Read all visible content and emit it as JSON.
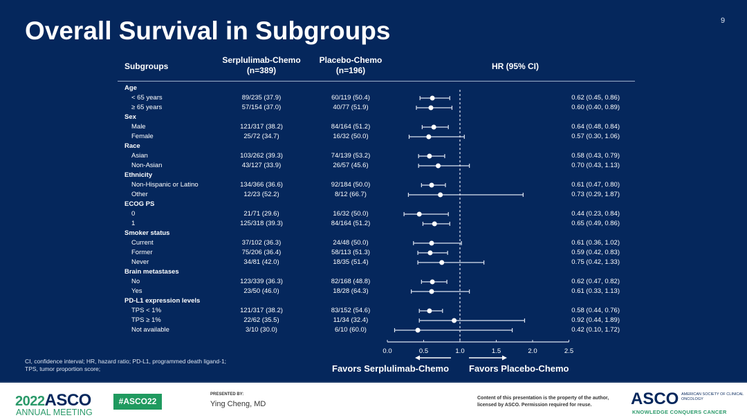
{
  "slide": {
    "title": "Overall Survival in Subgroups",
    "page_number": "9",
    "headers": {
      "subgroups": "Subgroups",
      "arm1": "Serplulimab-Chemo",
      "arm1_n": "(n=389)",
      "arm2": "Placebo-Chemo",
      "arm2_n": "(n=196)",
      "hr": "HR (95% CI)"
    },
    "footnote_line1": "CI, confidence interval; HR, hazard ratio; PD-L1, programmed death ligand-1;",
    "footnote_line2": "TPS, tumor proportion score;"
  },
  "chart_data": {
    "type": "forest",
    "xlim": [
      0,
      2.5
    ],
    "xticks": [
      "0.0",
      "0.5",
      "1.0",
      "1.5",
      "2.0",
      "2.5"
    ],
    "reference_line": 1.0,
    "favors_left": "Favors Serplulimab-Chemo",
    "favors_right": "Favors Placebo-Chemo",
    "rows": [
      {
        "label": "Age",
        "group": true
      },
      {
        "label": "< 65 years",
        "arm1": "89/235 (37.9)",
        "arm2": "60/119 (50.4)",
        "hr_text": "0.62 (0.45, 0.86)",
        "hr": 0.62,
        "lo": 0.45,
        "hi": 0.86
      },
      {
        "label": "≥ 65 years",
        "arm1": "57/154 (37.0)",
        "arm2": "40/77 (51.9)",
        "hr_text": "0.60 (0.40, 0.89)",
        "hr": 0.6,
        "lo": 0.4,
        "hi": 0.89
      },
      {
        "label": "Sex",
        "group": true
      },
      {
        "label": "Male",
        "arm1": "121/317 (38.2)",
        "arm2": "84/164 (51.2)",
        "hr_text": "0.64 (0.48, 0.84)",
        "hr": 0.64,
        "lo": 0.48,
        "hi": 0.84
      },
      {
        "label": "Female",
        "arm1": "25/72 (34.7)",
        "arm2": "16/32 (50.0)",
        "hr_text": "0.57 (0.30, 1.06)",
        "hr": 0.57,
        "lo": 0.3,
        "hi": 1.06
      },
      {
        "label": "Race",
        "group": true
      },
      {
        "label": "Asian",
        "arm1": "103/262 (39.3)",
        "arm2": "74/139 (53.2)",
        "hr_text": "0.58 (0.43, 0.79)",
        "hr": 0.58,
        "lo": 0.43,
        "hi": 0.79
      },
      {
        "label": "Non-Asian",
        "arm1": "43/127 (33.9)",
        "arm2": "26/57 (45.6)",
        "hr_text": "0.70 (0.43, 1.13)",
        "hr": 0.7,
        "lo": 0.43,
        "hi": 1.13
      },
      {
        "label": "Ethnicity",
        "group": true
      },
      {
        "label": "Non-Hispanic or Latino",
        "arm1": "134/366 (36.6)",
        "arm2": "92/184 (50.0)",
        "hr_text": "0.61 (0.47, 0.80)",
        "hr": 0.61,
        "lo": 0.47,
        "hi": 0.8
      },
      {
        "label": "Other",
        "arm1": "12/23 (52.2)",
        "arm2": "8/12 (66.7)",
        "hr_text": "0.73 (0.29, 1.87)",
        "hr": 0.73,
        "lo": 0.29,
        "hi": 1.87
      },
      {
        "label": "ECOG PS",
        "group": true
      },
      {
        "label": "0",
        "arm1": "21/71 (29.6)",
        "arm2": "16/32 (50.0)",
        "hr_text": "0.44 (0.23, 0.84)",
        "hr": 0.44,
        "lo": 0.23,
        "hi": 0.84
      },
      {
        "label": "1",
        "arm1": "125/318 (39.3)",
        "arm2": "84/164 (51.2)",
        "hr_text": "0.65 (0.49, 0.86)",
        "hr": 0.65,
        "lo": 0.49,
        "hi": 0.86
      },
      {
        "label": "Smoker status",
        "group": true
      },
      {
        "label": "Current",
        "arm1": "37/102 (36.3)",
        "arm2": "24/48 (50.0)",
        "hr_text": "0.61 (0.36, 1.02)",
        "hr": 0.61,
        "lo": 0.36,
        "hi": 1.02
      },
      {
        "label": "Former",
        "arm1": "75/206 (36.4)",
        "arm2": "58/113 (51.3)",
        "hr_text": "0.59 (0.42, 0.83)",
        "hr": 0.59,
        "lo": 0.42,
        "hi": 0.83
      },
      {
        "label": "Never",
        "arm1": "34/81 (42.0)",
        "arm2": "18/35 (51.4)",
        "hr_text": "0.75 (0.42, 1.33)",
        "hr": 0.75,
        "lo": 0.42,
        "hi": 1.33
      },
      {
        "label": "Brain metastases",
        "group": true
      },
      {
        "label": "No",
        "arm1": "123/339 (36.3)",
        "arm2": "82/168 (48.8)",
        "hr_text": "0.62 (0.47, 0.82)",
        "hr": 0.62,
        "lo": 0.47,
        "hi": 0.82
      },
      {
        "label": "Yes",
        "arm1": "23/50 (46.0)",
        "arm2": "18/28 (64.3)",
        "hr_text": "0.61 (0.33, 1.13)",
        "hr": 0.61,
        "lo": 0.33,
        "hi": 1.13
      },
      {
        "label": "PD-L1 expression levels",
        "group": true
      },
      {
        "label": "TPS < 1%",
        "arm1": "121/317 (38.2)",
        "arm2": "83/152 (54.6)",
        "hr_text": "0.58 (0.44, 0.76)",
        "hr": 0.58,
        "lo": 0.44,
        "hi": 0.76
      },
      {
        "label": "TPS ≥ 1%",
        "arm1": "22/62 (35.5)",
        "arm2": "11/34 (32.4)",
        "hr_text": "0.92 (0.44, 1.89)",
        "hr": 0.92,
        "lo": 0.44,
        "hi": 1.89
      },
      {
        "label": "Not available",
        "arm1": "3/10 (30.0)",
        "arm2": "6/10 (60.0)",
        "hr_text": "0.42 (0.10, 1.72)",
        "hr": 0.42,
        "lo": 0.1,
        "hi": 1.72
      }
    ]
  },
  "footer": {
    "year": "2022",
    "asco": "ASCO",
    "meeting": "ANNUAL MEETING",
    "hashtag": "#ASCO22",
    "presented_by_label": "PRESENTED BY:",
    "presenter": "Ying Cheng, MD",
    "copyright": "Content of this presentation is the property of the author, licensed by ASCO. Permission required for reuse.",
    "logo": "ASCO",
    "society": "AMERICAN SOCIETY OF CLINICAL ONCOLOGY",
    "tagline": "KNOWLEDGE CONQUERS CANCER"
  },
  "colors": {
    "background": "#05275c",
    "text": "#ffffff",
    "accent_green": "#1f9a5f"
  }
}
